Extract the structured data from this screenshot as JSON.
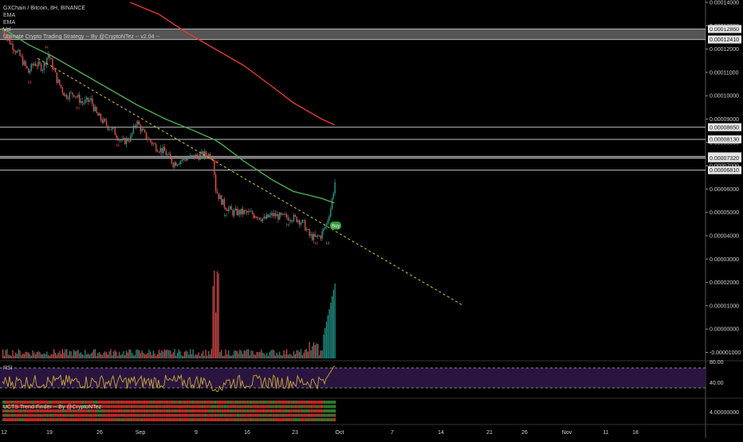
{
  "header": {
    "symbol": "GXChain / Bitcoin, 8H, BINANCE",
    "indicators": [
      "EMA",
      "EMA",
      "Vol"
    ],
    "strategy": "Ultimate Crypto Trading Strategy -- By @CryptoNTez -- v2.04 --"
  },
  "rsi_panel": {
    "label": "RSI",
    "levels": [
      "80.00",
      "40.00"
    ]
  },
  "trend_panel": {
    "label": "UCTS Trend Finder -- By @CryptoNTez",
    "axis_label": "4.00000000"
  },
  "colors": {
    "background": "#000000",
    "bull": "#26a69a",
    "bear": "#ef5350",
    "ema_fast": "#4caf50",
    "ema_slow": "#e53935",
    "rsi_line": "#c9a93a",
    "rsi_bg": "#2a1540",
    "trendline": "#d4c82a"
  },
  "chart_data": {
    "type": "candlestick",
    "title": "GXChain / Bitcoin, 8H, BINANCE",
    "price_axis_labels": [
      "0.00014000",
      "0.00013000",
      "0.00012000",
      "0.00011000",
      "0.00010000",
      "0.00009000",
      "0.00008000",
      "0.00007000",
      "0.00006000",
      "0.00005000",
      "0.00004000",
      "0.00003000",
      "0.00002000",
      "0.00001000",
      "0.00000000",
      "-0.00001000"
    ],
    "horizontal_levels": [
      "0.00012860",
      "0.00012410",
      "0.00008650",
      "0.00008130",
      "0.00007400",
      "0.00007320",
      "0.00006810"
    ],
    "x_tick_labels": [
      "12",
      "19",
      "26",
      "Sep",
      "9",
      "16",
      "23",
      "Oct",
      "7",
      "14",
      "21",
      "26",
      "Nov",
      "11",
      "18"
    ],
    "series": [
      {
        "name": "EMA",
        "color": "#4caf50",
        "points": [
          [
            0,
            0.000129
          ],
          [
            18,
            0.000122
          ],
          [
            35,
            0.000117
          ],
          [
            55,
            0.00011
          ],
          [
            75,
            0.000103
          ],
          [
            95,
            9.6e-05
          ],
          [
            115,
            9e-05
          ],
          [
            135,
            8.5e-05
          ],
          [
            150,
            8.1e-05
          ],
          [
            155,
            7.9e-05
          ],
          [
            170,
            7.2e-05
          ],
          [
            190,
            6.4e-05
          ],
          [
            205,
            5.9e-05
          ],
          [
            225,
            5.6e-05
          ],
          [
            234,
            5.4e-05
          ]
        ]
      },
      {
        "name": "EMA",
        "color": "#e53935",
        "points": [
          [
            90,
            0.00014
          ],
          [
            110,
            0.000135
          ],
          [
            130,
            0.000127
          ],
          [
            150,
            0.00012
          ],
          [
            170,
            0.000113
          ],
          [
            190,
            0.000104
          ],
          [
            205,
            9.7e-05
          ],
          [
            225,
            9e-05
          ],
          [
            234,
            8.75e-05
          ]
        ]
      }
    ],
    "trendline": {
      "points": [
        [
          25,
          0.000116
        ],
        [
          325,
          1e-05
        ]
      ]
    },
    "candles_summary": "8H candles from Aug 12 to Sep 26; downtrend from ~0.000128 to ~0.000038, rebound to ~0.000063",
    "signals": {
      "buy_label": "Buy"
    },
    "rsi": {
      "levels": [
        80,
        40
      ]
    },
    "volume_summary": "low volume with spikes near Sep 10 and Sep 25"
  }
}
